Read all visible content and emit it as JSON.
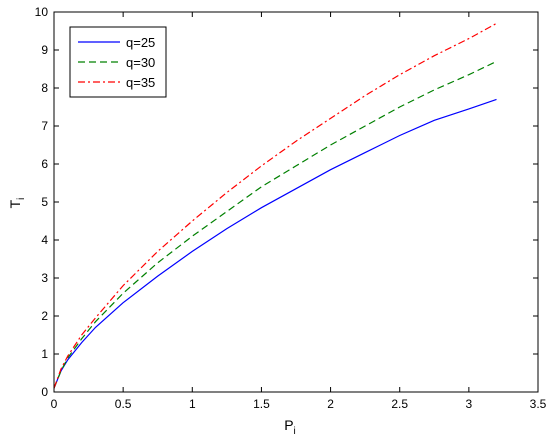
{
  "chart_data": {
    "type": "line",
    "xlabel": "P",
    "xlabel_sub": "i",
    "ylabel": "T",
    "ylabel_sub": "i",
    "xlim": [
      0,
      3.5
    ],
    "ylim": [
      0,
      10
    ],
    "xticks": [
      0,
      0.5,
      1,
      1.5,
      2,
      2.5,
      3,
      3.5
    ],
    "xtick_labels": [
      "0",
      "0.5",
      "1",
      "1.5",
      "2",
      "2.5",
      "3",
      "3.5"
    ],
    "yticks": [
      0,
      1,
      2,
      3,
      4,
      5,
      6,
      7,
      8,
      9,
      10
    ],
    "ytick_labels": [
      "0",
      "1",
      "2",
      "3",
      "4",
      "5",
      "6",
      "7",
      "8",
      "9",
      "10"
    ],
    "grid": false,
    "legend_position": "top-left",
    "series": [
      {
        "name": "q=25",
        "color": "#0000ff",
        "style": "solid",
        "x": [
          0,
          0.05,
          0.1,
          0.2,
          0.3,
          0.5,
          0.75,
          1.0,
          1.25,
          1.5,
          1.75,
          2.0,
          2.25,
          2.5,
          2.75,
          3.0,
          3.2
        ],
        "y": [
          0.1,
          0.55,
          0.85,
          1.3,
          1.7,
          2.35,
          3.05,
          3.7,
          4.3,
          4.85,
          5.35,
          5.85,
          6.3,
          6.75,
          7.15,
          7.45,
          7.7
        ]
      },
      {
        "name": "q=30",
        "color": "#008000",
        "style": "dashed",
        "x": [
          0,
          0.05,
          0.1,
          0.2,
          0.3,
          0.5,
          0.75,
          1.0,
          1.25,
          1.5,
          1.75,
          2.0,
          2.25,
          2.5,
          2.75,
          3.0,
          3.2
        ],
        "y": [
          0.1,
          0.55,
          0.9,
          1.4,
          1.85,
          2.6,
          3.4,
          4.1,
          4.75,
          5.4,
          5.95,
          6.5,
          7.0,
          7.5,
          7.95,
          8.35,
          8.7
        ]
      },
      {
        "name": "q=35",
        "color": "#ff0000",
        "style": "dashdot",
        "x": [
          0,
          0.05,
          0.1,
          0.2,
          0.3,
          0.5,
          0.75,
          1.0,
          1.25,
          1.5,
          1.75,
          2.0,
          2.25,
          2.5,
          2.75,
          3.0,
          3.2
        ],
        "y": [
          0.1,
          0.6,
          0.95,
          1.5,
          1.95,
          2.8,
          3.7,
          4.5,
          5.25,
          5.95,
          6.6,
          7.2,
          7.8,
          8.35,
          8.85,
          9.3,
          9.7
        ]
      }
    ]
  }
}
